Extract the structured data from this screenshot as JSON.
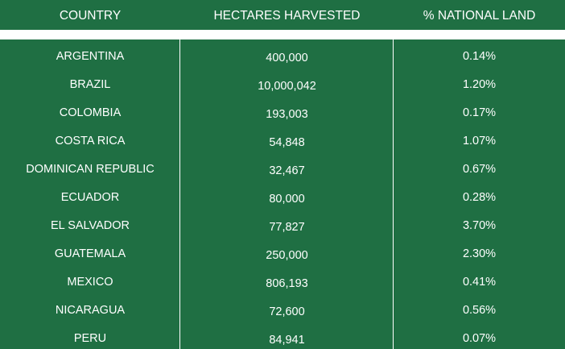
{
  "colors": {
    "background": "#1f6f43",
    "text": "#ffffff",
    "separator": "#ffffff"
  },
  "headers": [
    "COUNTRY",
    "HECTARES HARVESTED",
    "% NATIONAL LAND"
  ],
  "rows": [
    {
      "country": "ARGENTINA",
      "hectares": "400,000",
      "pct": "0.14%"
    },
    {
      "country": "BRAZIL",
      "hectares": "10,000,042",
      "pct": "1.20%"
    },
    {
      "country": "COLOMBIA",
      "hectares": "193,003",
      "pct": "0.17%"
    },
    {
      "country": "COSTA RICA",
      "hectares": "54,848",
      "pct": "1.07%"
    },
    {
      "country": "DOMINICAN REPUBLIC",
      "hectares": "32,467",
      "pct": "0.67%"
    },
    {
      "country": "ECUADOR",
      "hectares": "80,000",
      "pct": "0.28%"
    },
    {
      "country": "EL SALVADOR",
      "hectares": "77,827",
      "pct": "3.70%"
    },
    {
      "country": "GUATEMALA",
      "hectares": "250,000",
      "pct": "2.30%"
    },
    {
      "country": "MEXICO",
      "hectares": "806,193",
      "pct": "0.41%"
    },
    {
      "country": "NICARAGUA",
      "hectares": "72,600",
      "pct": "0.56%"
    },
    {
      "country": "PERU",
      "hectares": "84,941",
      "pct": "0.07%"
    }
  ]
}
